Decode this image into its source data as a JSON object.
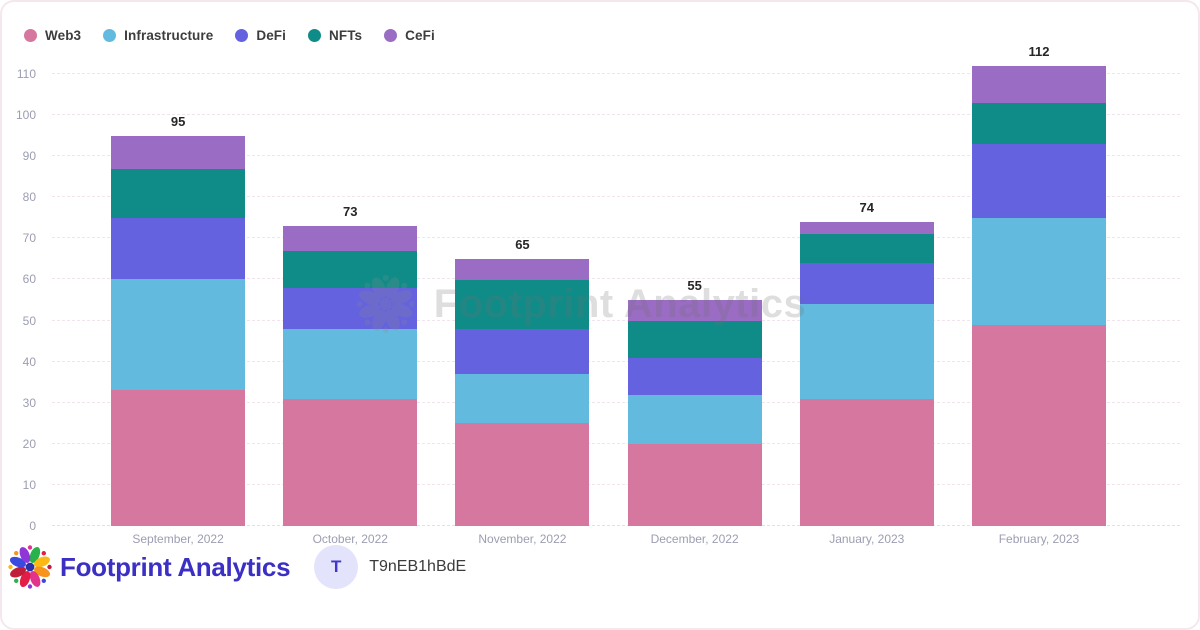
{
  "chart_data": {
    "type": "bar",
    "stacked": true,
    "title": "",
    "xlabel": "",
    "ylabel": "",
    "categories": [
      "September, 2022",
      "October, 2022",
      "November, 2022",
      "December, 2022",
      "January, 2023",
      "February, 2023"
    ],
    "series": [
      {
        "name": "Web3",
        "color": "#d5779e",
        "values": [
          33,
          31,
          25,
          20,
          31,
          49
        ]
      },
      {
        "name": "Infrastructure",
        "color": "#63badf",
        "values": [
          27,
          17,
          12,
          12,
          23,
          26
        ]
      },
      {
        "name": "DeFi",
        "color": "#6462de",
        "values": [
          15,
          10,
          11,
          9,
          10,
          18
        ]
      },
      {
        "name": "NFTs",
        "color": "#0f8c88",
        "values": [
          12,
          9,
          12,
          9,
          7,
          10
        ]
      },
      {
        "name": "CeFi",
        "color": "#9a6cc3",
        "values": [
          8,
          6,
          5,
          5,
          3,
          9
        ]
      }
    ],
    "totals": [
      95,
      73,
      65,
      55,
      74,
      112
    ],
    "ylim": [
      0,
      110
    ],
    "ytick_step": 10,
    "grid": "dashed-horizontal",
    "legend_position": "top-left"
  },
  "watermark": {
    "text": "Footprint Analytics"
  },
  "footer": {
    "brand": "Footprint Analytics",
    "brand_color": "#3c2fc4",
    "badge_letter": "T",
    "badge_label": "T9nEB1hBdE"
  },
  "colors": {
    "grid": "#f2e4ec",
    "axis_text": "#9c9db1",
    "legend_text": "#3d3d3d",
    "card_border": "#f5e7ee",
    "logo_petals": [
      "#27b24b",
      "#fdb913",
      "#f7941d",
      "#e2348b",
      "#e11d48",
      "#c11c3a",
      "#3b49df",
      "#9036d9"
    ],
    "logo_center": "#2b2fa8"
  }
}
